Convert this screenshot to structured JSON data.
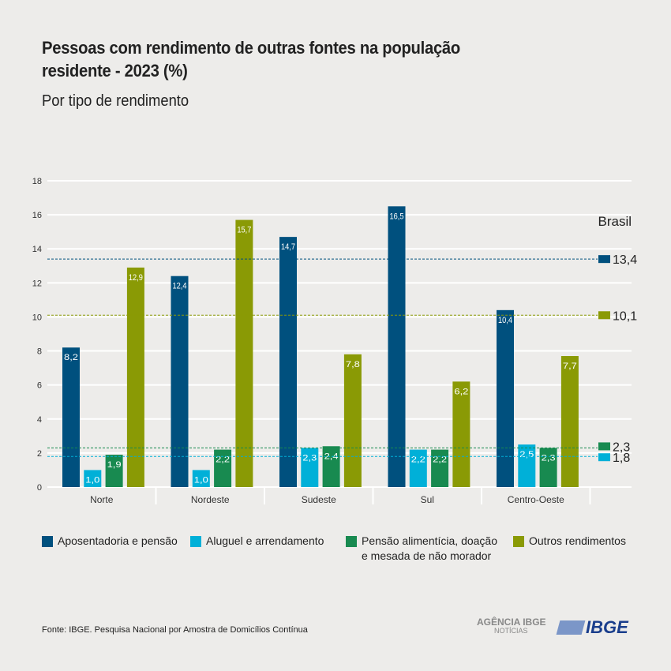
{
  "chart_data": {
    "type": "bar",
    "title": "Pessoas com rendimento de outras fontes na população residente - 2023 (%)",
    "subtitle": "Por tipo de rendimento",
    "categories": [
      "Norte",
      "Nordeste",
      "Sudeste",
      "Sul",
      "Centro-Oeste"
    ],
    "ylim": [
      0,
      18
    ],
    "yticks": [
      0,
      2,
      4,
      6,
      8,
      10,
      12,
      14,
      16,
      18
    ],
    "grid": true,
    "legend_placement": "bottom",
    "series": [
      {
        "name": "Aposentadoria e pensão",
        "color": "#00507e",
        "values": [
          8.2,
          12.4,
          14.7,
          16.5,
          10.4
        ],
        "labels": [
          "8,2",
          "12,4",
          "14,7",
          "16,5",
          "10,4"
        ]
      },
      {
        "name": "Aluguel e arrendamento",
        "color": "#00b0d8",
        "values": [
          1.0,
          1.0,
          2.3,
          2.2,
          2.5
        ],
        "labels": [
          "1,0",
          "1,0",
          "2,3",
          "2,2",
          "2,5"
        ]
      },
      {
        "name": "Pensão alimentícia, doação e mesada de não morador",
        "name_line1": "Pensão alimentícia, doação",
        "name_line2": "e mesada de não morador",
        "color": "#188a50",
        "values": [
          1.9,
          2.2,
          2.4,
          2.2,
          2.3
        ],
        "labels": [
          "1,9",
          "2,2",
          "2,4",
          "2,2",
          "2,3"
        ]
      },
      {
        "name": "Outros rendimentos",
        "color": "#8a9a05",
        "values": [
          12.9,
          15.7,
          7.8,
          6.2,
          7.7
        ],
        "labels": [
          "12,9",
          "15,7",
          "7,8",
          "6,2",
          "7,7"
        ]
      }
    ],
    "reference": {
      "title": "Brasil",
      "lines": [
        {
          "series": 0,
          "value": 13.4,
          "label": "13,4"
        },
        {
          "series": 3,
          "value": 10.1,
          "label": "10,1"
        },
        {
          "series": 2,
          "value": 2.3,
          "label": "2,3"
        },
        {
          "series": 1,
          "value": 1.8,
          "label": "1,8"
        }
      ]
    }
  },
  "footer": {
    "source": "Fonte: IBGE. Pesquisa Nacional por Amostra de Domicílios Contínua",
    "logo_agencia": "AGÊNCIA IBGE",
    "logo_noticias": "NOTÍCIAS",
    "logo_ibge": "IBGE"
  }
}
